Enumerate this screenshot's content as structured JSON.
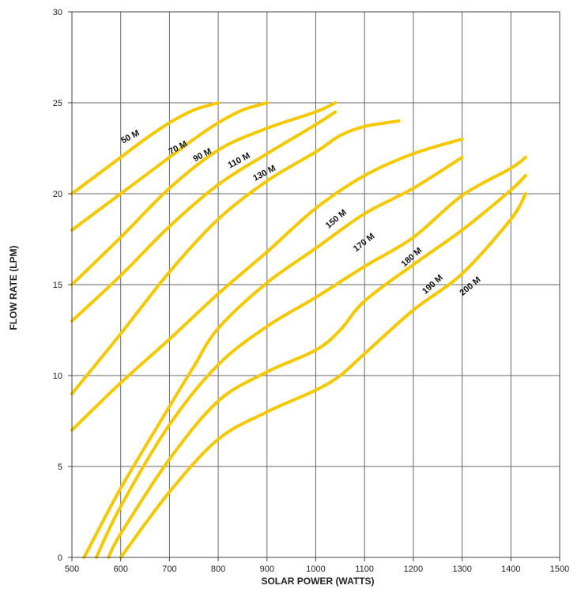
{
  "chart_data": {
    "type": "line",
    "title": "",
    "xlabel": "SOLAR POWER (WATTS)",
    "ylabel": "FLOW RATE (LPM)",
    "xlim": [
      500,
      1500
    ],
    "ylim": [
      0,
      30
    ],
    "x_ticks": [
      500,
      600,
      700,
      800,
      900,
      1000,
      1100,
      1200,
      1300,
      1400,
      1500
    ],
    "y_ticks": [
      0,
      5,
      10,
      15,
      20,
      25,
      30
    ],
    "grid": true,
    "line_color": "#F5C800",
    "series": [
      {
        "name": "50 M",
        "x": [
          500,
          550,
          600,
          650,
          700,
          750,
          800
        ],
        "y": [
          20.0,
          21.0,
          22.0,
          23.0,
          23.9,
          24.6,
          25.0
        ]
      },
      {
        "name": "70 M",
        "x": [
          500,
          600,
          700,
          750,
          800,
          850,
          900
        ],
        "y": [
          18.0,
          20.0,
          22.0,
          23.0,
          23.9,
          24.6,
          25.0
        ]
      },
      {
        "name": "90 M",
        "x": [
          500,
          600,
          700,
          800,
          900,
          1000,
          1040
        ],
        "y": [
          15.0,
          17.6,
          20.3,
          22.4,
          23.6,
          24.5,
          25.0
        ]
      },
      {
        "name": "110 M",
        "x": [
          500,
          600,
          700,
          800,
          900,
          1000,
          1040
        ],
        "y": [
          13.0,
          15.5,
          18.2,
          20.5,
          22.2,
          23.8,
          24.5
        ]
      },
      {
        "name": "130 M",
        "x": [
          500,
          600,
          700,
          800,
          900,
          1000,
          1050,
          1100,
          1170
        ],
        "y": [
          9.0,
          12.3,
          15.7,
          18.6,
          20.7,
          22.3,
          23.2,
          23.7,
          24.0
        ]
      },
      {
        "name": "150 M",
        "x": [
          500,
          600,
          700,
          800,
          900,
          1000,
          1100,
          1200,
          1300
        ],
        "y": [
          7.0,
          9.6,
          12.0,
          14.5,
          16.8,
          19.2,
          21.0,
          22.2,
          23.0
        ]
      },
      {
        "name": "170 M",
        "x": [
          525,
          600,
          700,
          750,
          800,
          900,
          1000,
          1100,
          1200,
          1300
        ],
        "y": [
          0.0,
          3.8,
          8.3,
          10.5,
          12.6,
          15.1,
          17.0,
          18.9,
          20.3,
          22.0
        ]
      },
      {
        "name": "180 M",
        "x": [
          550,
          600,
          700,
          800,
          900,
          1000,
          1100,
          1200,
          1300,
          1400,
          1430
        ],
        "y": [
          0.0,
          2.8,
          7.3,
          10.6,
          12.7,
          14.3,
          16.0,
          17.6,
          19.9,
          21.4,
          22.0
        ]
      },
      {
        "name": "190 M",
        "x": [
          575,
          600,
          700,
          800,
          900,
          1000,
          1050,
          1100,
          1200,
          1300,
          1400,
          1430
        ],
        "y": [
          0.0,
          1.3,
          5.4,
          8.6,
          10.2,
          11.4,
          12.5,
          14.1,
          16.1,
          18.0,
          20.2,
          21.0
        ]
      },
      {
        "name": "200 M",
        "x": [
          600,
          700,
          800,
          900,
          1000,
          1050,
          1100,
          1200,
          1300,
          1400,
          1430
        ],
        "y": [
          0.0,
          3.6,
          6.5,
          8.0,
          9.2,
          10.0,
          11.2,
          13.6,
          15.6,
          18.6,
          20.0
        ]
      }
    ],
    "curve_labels": [
      {
        "text": "50 M",
        "x": 622,
        "y": 23.0,
        "angle": -28
      },
      {
        "text": "70 M",
        "x": 720,
        "y": 22.4,
        "angle": -28
      },
      {
        "text": "90 M",
        "x": 770,
        "y": 22.0,
        "angle": -28
      },
      {
        "text": "110 M",
        "x": 845,
        "y": 21.7,
        "angle": -28
      },
      {
        "text": "130 M",
        "x": 897,
        "y": 21.0,
        "angle": -28
      },
      {
        "text": "150 M",
        "x": 1045,
        "y": 18.5,
        "angle": -40
      },
      {
        "text": "170 M",
        "x": 1102,
        "y": 17.2,
        "angle": -38
      },
      {
        "text": "180 M",
        "x": 1200,
        "y": 16.4,
        "angle": -42
      },
      {
        "text": "190 M",
        "x": 1243,
        "y": 14.9,
        "angle": -42
      },
      {
        "text": "200 M",
        "x": 1320,
        "y": 14.8,
        "angle": -40
      }
    ]
  }
}
